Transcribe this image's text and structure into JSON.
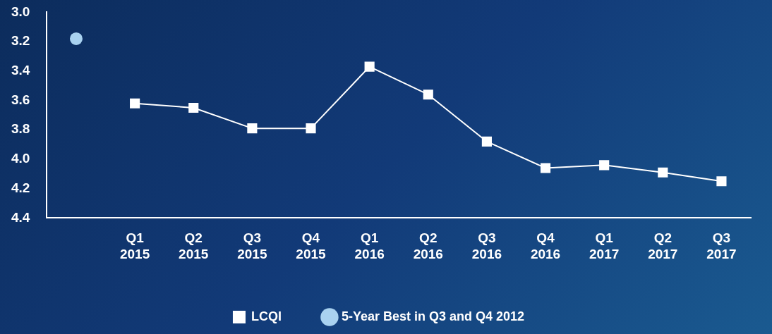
{
  "chart_data": {
    "type": "line",
    "categories": [
      null,
      "Q1\n2015",
      "Q2\n2015",
      "Q3\n2015",
      "Q4\n2015",
      "Q1\n2016",
      "Q2\n2016",
      "Q3\n2016",
      "Q4\n2016",
      "Q1\n2017",
      "Q2\n2017",
      "Q3\n2017"
    ],
    "series": [
      {
        "name": "LCQI",
        "color": "#ffffff",
        "marker": "square",
        "values": [
          null,
          3.62,
          3.65,
          3.79,
          3.79,
          3.37,
          3.56,
          3.88,
          4.06,
          4.04,
          4.09,
          4.15
        ]
      },
      {
        "name": "5-Year Best in Q3 and Q4 2012",
        "type": "scatter",
        "color": "#a9d2f0",
        "marker": "circle",
        "values": [
          3.18,
          null,
          null,
          null,
          null,
          null,
          null,
          null,
          null,
          null,
          null,
          null
        ]
      }
    ],
    "ylim": [
      4.4,
      3.0
    ],
    "yticks": [
      {
        "value": 3.0,
        "label": "3.0"
      },
      3.2,
      3.4,
      3.6,
      3.8,
      {
        "value": 4.0,
        "label": "4.0"
      },
      4.2,
      4.4
    ],
    "grid": false,
    "legend": "bottom"
  }
}
